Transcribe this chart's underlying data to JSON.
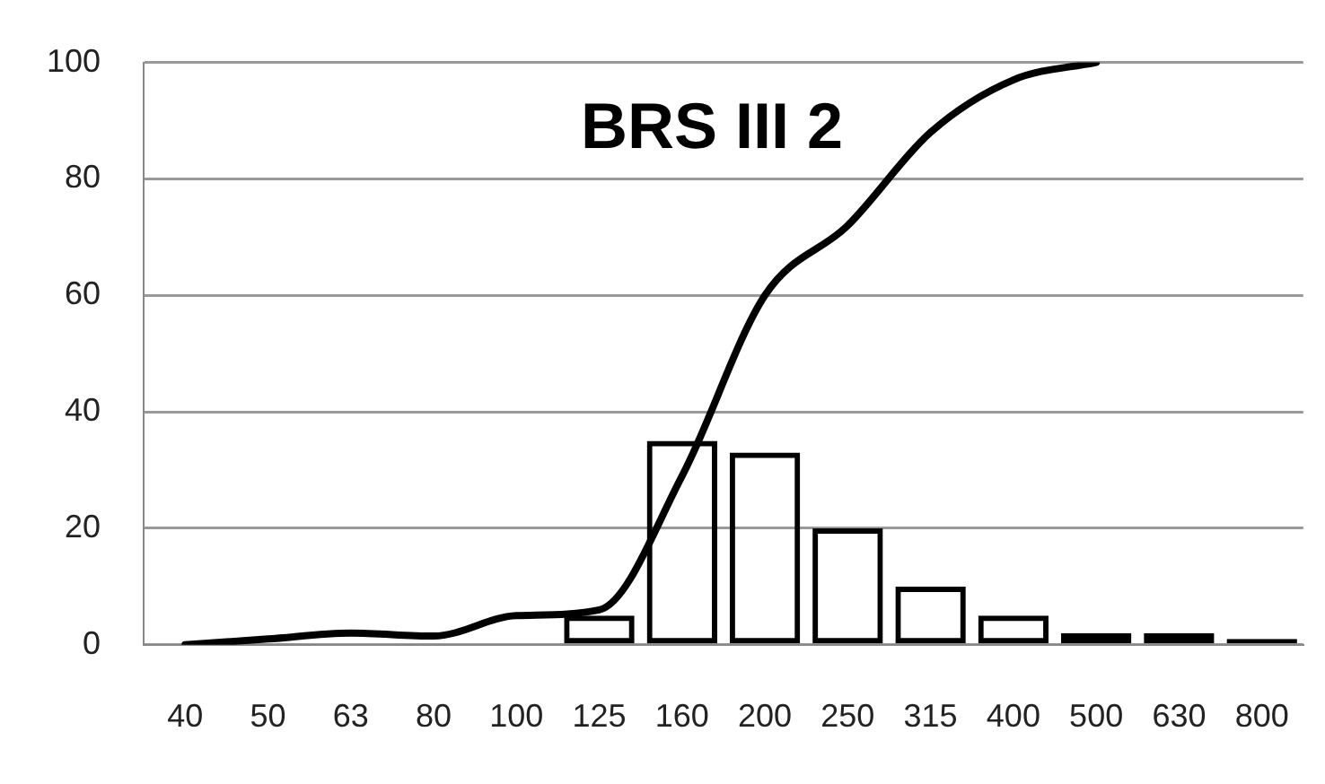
{
  "chart_data": {
    "type": "bar",
    "title": "BRS III 2",
    "categories": [
      "40",
      "50",
      "63",
      "80",
      "100",
      "125",
      "160",
      "200",
      "250",
      "315",
      "400",
      "500",
      "630",
      "800"
    ],
    "series": [
      {
        "color": "#000000",
        "values": [
          null,
          null,
          null,
          null,
          null,
          5,
          35,
          33,
          20,
          10,
          5,
          2,
          2,
          1
        ]
      },
      {
        "type": "line",
        "color": "#000000",
        "values": [
          0,
          1,
          2,
          1.5,
          5,
          6,
          29,
          60,
          72,
          88,
          97,
          100,
          null,
          null
        ]
      }
    ],
    "ylim": [
      0,
      100
    ],
    "yticks": [
      0,
      20,
      40,
      60,
      80,
      100
    ],
    "grid": "y",
    "legend": false,
    "marker": "none",
    "line_style": "solid"
  }
}
